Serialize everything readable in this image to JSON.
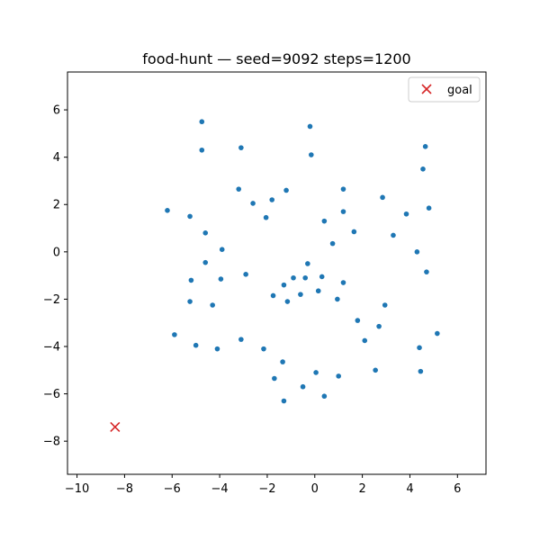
{
  "chart_data": {
    "type": "scatter",
    "title": "food-hunt — seed=9092 steps=1200",
    "xlabel": "",
    "ylabel": "",
    "xlim": [
      -10.4,
      7.2
    ],
    "ylim": [
      -9.4,
      7.6
    ],
    "x_ticks": [
      -10,
      -8,
      -6,
      -4,
      -2,
      0,
      2,
      4,
      6
    ],
    "y_ticks": [
      -8,
      -6,
      -4,
      -2,
      0,
      2,
      4,
      6
    ],
    "x_tick_labels": [
      "−10",
      "−8",
      "−6",
      "−4",
      "−2",
      "0",
      "2",
      "4",
      "6"
    ],
    "y_tick_labels": [
      "−8",
      "−6",
      "−4",
      "−2",
      "0",
      "2",
      "4",
      "6"
    ],
    "grid": false,
    "legend_position": "top-right",
    "marker_color": "#1f77b4",
    "goal_color": "#d62728",
    "series": [
      {
        "marker": "dot",
        "points": [
          [
            -4.75,
            5.5
          ],
          [
            -0.2,
            5.3
          ],
          [
            -4.75,
            4.3
          ],
          [
            -3.1,
            4.4
          ],
          [
            -0.15,
            4.1
          ],
          [
            4.65,
            4.45
          ],
          [
            4.55,
            3.5
          ],
          [
            -3.2,
            2.65
          ],
          [
            -2.6,
            2.05
          ],
          [
            -1.8,
            2.2
          ],
          [
            -1.2,
            2.6
          ],
          [
            1.2,
            2.65
          ],
          [
            2.85,
            2.3
          ],
          [
            -6.2,
            1.75
          ],
          [
            -5.25,
            1.5
          ],
          [
            -2.05,
            1.45
          ],
          [
            0.4,
            1.3
          ],
          [
            1.2,
            1.7
          ],
          [
            3.85,
            1.6
          ],
          [
            4.8,
            1.85
          ],
          [
            -4.6,
            0.8
          ],
          [
            1.65,
            0.85
          ],
          [
            3.3,
            0.7
          ],
          [
            -3.9,
            0.1
          ],
          [
            0.75,
            0.35
          ],
          [
            4.3,
            0.0
          ],
          [
            -4.6,
            -0.45
          ],
          [
            -0.3,
            -0.5
          ],
          [
            -2.9,
            -0.95
          ],
          [
            4.7,
            -0.85
          ],
          [
            -5.2,
            -1.2
          ],
          [
            -3.95,
            -1.15
          ],
          [
            -0.9,
            -1.1
          ],
          [
            -0.4,
            -1.1
          ],
          [
            0.3,
            -1.05
          ],
          [
            1.2,
            -1.3
          ],
          [
            -1.3,
            -1.4
          ],
          [
            0.15,
            -1.65
          ],
          [
            -1.75,
            -1.85
          ],
          [
            -0.6,
            -1.8
          ],
          [
            -5.25,
            -2.1
          ],
          [
            -1.15,
            -2.1
          ],
          [
            0.95,
            -2.0
          ],
          [
            -4.3,
            -2.25
          ],
          [
            2.95,
            -2.25
          ],
          [
            1.8,
            -2.9
          ],
          [
            2.7,
            -3.15
          ],
          [
            -5.9,
            -3.5
          ],
          [
            5.15,
            -3.45
          ],
          [
            -3.1,
            -3.7
          ],
          [
            2.1,
            -3.75
          ],
          [
            -5.0,
            -3.95
          ],
          [
            -4.1,
            -4.1
          ],
          [
            -2.15,
            -4.1
          ],
          [
            4.4,
            -4.05
          ],
          [
            -1.35,
            -4.65
          ],
          [
            2.55,
            -5.0
          ],
          [
            4.45,
            -5.05
          ],
          [
            0.05,
            -5.1
          ],
          [
            1.0,
            -5.25
          ],
          [
            -1.7,
            -5.35
          ],
          [
            -0.5,
            -5.7
          ],
          [
            0.4,
            -6.1
          ],
          [
            -1.3,
            -6.3
          ]
        ]
      },
      {
        "name": "goal",
        "marker": "x",
        "points": [
          [
            -8.4,
            -7.4
          ]
        ]
      }
    ]
  }
}
